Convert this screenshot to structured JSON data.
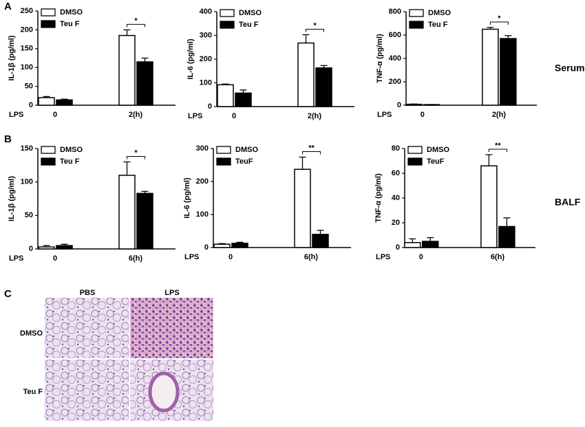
{
  "panels": {
    "a": "A",
    "b": "B",
    "c": "C",
    "serum": "Serum",
    "balf": "BALF"
  },
  "chart_data": [
    {
      "type": "bar",
      "ylabel": "IL-1β (pg/ml)",
      "xlabel": "LPS",
      "categories": [
        "0",
        "2(h)"
      ],
      "significance": [
        null,
        "*"
      ],
      "series": [
        {
          "name": "DMSO",
          "color": "#ffffff",
          "values": [
            20,
            185
          ],
          "errors": [
            3,
            15
          ]
        },
        {
          "name": "Teu F",
          "color": "#000000",
          "values": [
            14,
            115
          ],
          "errors": [
            2,
            10
          ]
        }
      ],
      "ylim": [
        0,
        250
      ],
      "yticks": [
        0,
        50,
        100,
        150,
        200,
        250
      ]
    },
    {
      "type": "bar",
      "ylabel": "IL-6 (pg/ml)",
      "xlabel": "LPS",
      "categories": [
        "0",
        "2(h)"
      ],
      "significance": [
        null,
        "*"
      ],
      "series": [
        {
          "name": "DMSO",
          "color": "#ffffff",
          "values": [
            92,
            268
          ],
          "errors": [
            3,
            35
          ]
        },
        {
          "name": "Teu F",
          "color": "#000000",
          "values": [
            57,
            163
          ],
          "errors": [
            13,
            10
          ]
        }
      ],
      "ylim": [
        0,
        400
      ],
      "yticks": [
        0,
        100,
        200,
        300,
        400
      ]
    },
    {
      "type": "bar",
      "ylabel": "TNF-α (pg/ml)",
      "xlabel": "LPS",
      "categories": [
        "0",
        "2(h)"
      ],
      "significance": [
        null,
        "*"
      ],
      "series": [
        {
          "name": "DMSO",
          "color": "#ffffff",
          "values": [
            8,
            650
          ],
          "errors": [
            2,
            15
          ]
        },
        {
          "name": "Teu F",
          "color": "#000000",
          "values": [
            5,
            570
          ],
          "errors": [
            1,
            25
          ]
        }
      ],
      "ylim": [
        0,
        800
      ],
      "yticks": [
        0,
        200,
        400,
        600,
        800
      ]
    },
    {
      "type": "bar",
      "ylabel": "IL-1β (pg/ml)",
      "xlabel": "LPS",
      "categories": [
        "0",
        "6(h)"
      ],
      "significance": [
        null,
        "*"
      ],
      "series": [
        {
          "name": "DMSO",
          "color": "#ffffff",
          "values": [
            3,
            110
          ],
          "errors": [
            2,
            20
          ]
        },
        {
          "name": "Teu F",
          "color": "#000000",
          "values": [
            5,
            83
          ],
          "errors": [
            2,
            3
          ]
        }
      ],
      "ylim": [
        0,
        150
      ],
      "yticks": [
        0,
        50,
        100,
        150
      ]
    },
    {
      "type": "bar",
      "ylabel": "IL-6 (pg/ml)",
      "xlabel": "LPS",
      "categories": [
        "0",
        "6(h)"
      ],
      "significance": [
        null,
        "**"
      ],
      "series": [
        {
          "name": "DMSO",
          "color": "#ffffff",
          "values": [
            10,
            237
          ],
          "errors": [
            2,
            37
          ]
        },
        {
          "name": "TeuF",
          "color": "#000000",
          "values": [
            13,
            40
          ],
          "errors": [
            3,
            12
          ]
        }
      ],
      "ylim": [
        0,
        300
      ],
      "yticks": [
        0,
        100,
        200,
        300
      ]
    },
    {
      "type": "bar",
      "ylabel": "TNF-α (pg/ml)",
      "xlabel": "LPS",
      "categories": [
        "0",
        "6(h)"
      ],
      "significance": [
        null,
        "**"
      ],
      "series": [
        {
          "name": "DMSO",
          "color": "#ffffff",
          "values": [
            4,
            66
          ],
          "errors": [
            3,
            9
          ]
        },
        {
          "name": "TeuF",
          "color": "#000000",
          "values": [
            5,
            17
          ],
          "errors": [
            3,
            7
          ]
        }
      ],
      "ylim": [
        0,
        80
      ],
      "yticks": [
        0,
        20,
        40,
        60,
        80
      ]
    }
  ],
  "histology": {
    "columns": [
      "PBS",
      "LPS"
    ],
    "rows": [
      "DMSO",
      "Teu F"
    ]
  }
}
